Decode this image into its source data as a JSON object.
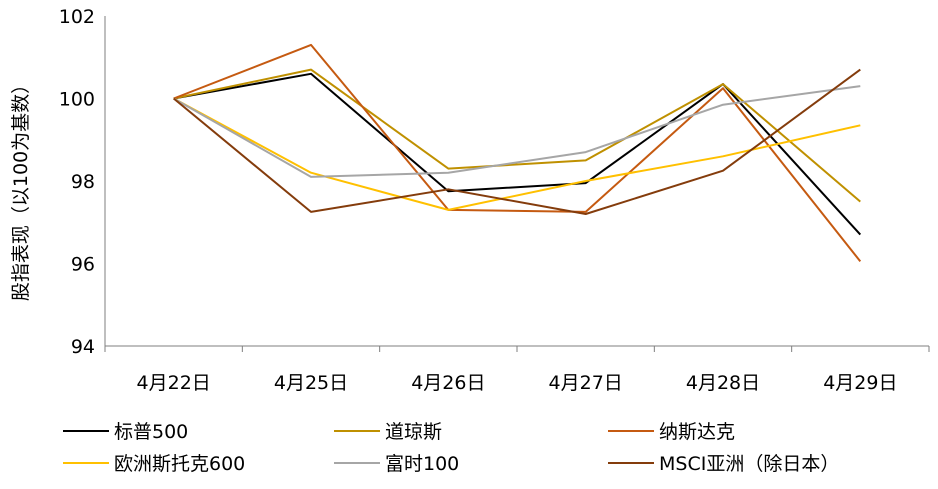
{
  "chart_data": {
    "type": "line",
    "title": "",
    "xlabel": "",
    "ylabel": "股指表现（以100为基数）",
    "ylim": [
      94,
      102
    ],
    "yticks": [
      "94",
      "96",
      "98",
      "100",
      "102"
    ],
    "grid": false,
    "legend_position": "bottom",
    "categories": [
      "4月22日",
      "4月25日",
      "4月26日",
      "4月27日",
      "4月28日",
      "4月29日"
    ],
    "series": [
      {
        "name": "标普500",
        "color": "#000000",
        "values": [
          100.0,
          100.6,
          97.75,
          97.95,
          100.35,
          96.7
        ]
      },
      {
        "name": "道琼斯",
        "color": "#BF9000",
        "values": [
          100.0,
          100.7,
          98.3,
          98.5,
          100.35,
          97.5
        ]
      },
      {
        "name": "纳斯达克",
        "color": "#C55A11",
        "values": [
          100.0,
          101.3,
          97.3,
          97.25,
          100.25,
          96.05
        ]
      },
      {
        "name": "欧洲斯托克600",
        "color": "#FFC000",
        "values": [
          100.0,
          98.2,
          97.3,
          98.0,
          98.6,
          99.35
        ]
      },
      {
        "name": "富时100",
        "color": "#A6A6A6",
        "values": [
          100.0,
          98.1,
          98.2,
          98.7,
          99.85,
          100.3
        ]
      },
      {
        "name": "MSCI亚洲（除日本）",
        "color": "#843C0C",
        "values": [
          100.0,
          97.25,
          97.8,
          97.2,
          98.25,
          100.7
        ]
      }
    ]
  }
}
